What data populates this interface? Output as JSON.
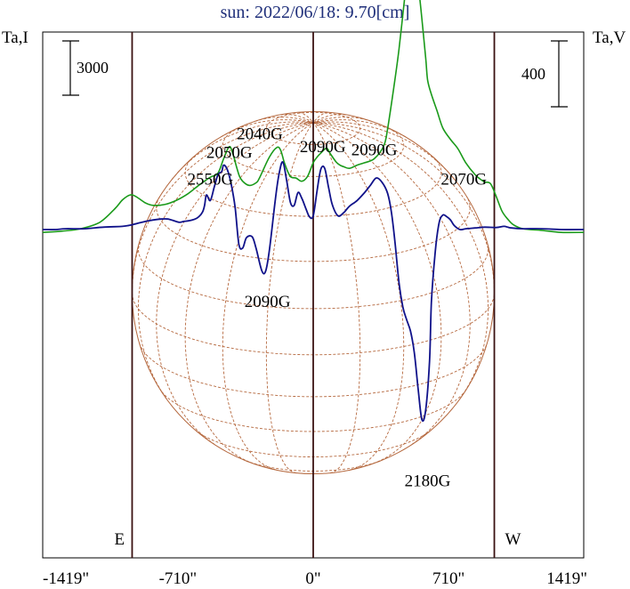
{
  "chart_data": {
    "type": "line",
    "title": "sun: 2022/06/18: 9.70[cm]",
    "ylabel_left": "Ta,I",
    "ylabel_right": "Ta,V",
    "x_ticks": [
      {
        "value": -1419,
        "label": "-1419\""
      },
      {
        "value": -710,
        "label": "-710\""
      },
      {
        "value": 0,
        "label": "0\""
      },
      {
        "value": 710,
        "label": "710\""
      },
      {
        "value": 1419,
        "label": "1419\""
      }
    ],
    "xlim": [
      -1419,
      1419
    ],
    "solar_limb": {
      "east": -950,
      "west": 950,
      "east_label": "E",
      "west_label": "W"
    },
    "scale_bars": [
      {
        "axis": "left",
        "label": "3000"
      },
      {
        "axis": "right",
        "label": "400"
      }
    ],
    "series": [
      {
        "name": "I",
        "color": "#1a9a1a",
        "x": [
          -1419,
          -1320,
          -1220,
          -1120,
          -1040,
          -1000,
          -960,
          -930,
          -880,
          -840,
          -780,
          -720,
          -660,
          -600,
          -540,
          -500,
          -470,
          -440,
          -420,
          -400,
          -380,
          -340,
          -300,
          -280,
          -230,
          -190,
          -170,
          -150,
          -120,
          -90,
          -60,
          -30,
          0,
          20,
          40,
          70,
          90,
          120,
          140,
          160,
          190,
          230,
          270,
          320,
          370,
          390,
          420,
          450,
          480,
          500,
          520,
          540,
          550,
          570,
          590,
          600,
          620,
          650,
          680,
          720,
          760,
          800,
          850,
          880,
          900,
          930,
          960,
          990,
          1020,
          1050,
          1100,
          1200,
          1300,
          1419
        ],
        "y": [
          -0.35,
          -0.2,
          0.1,
          0.9,
          2.6,
          3.7,
          4.3,
          4.1,
          3.3,
          3.0,
          3.1,
          3.6,
          4.4,
          5.5,
          6.5,
          7.0,
          8.8,
          10.3,
          9.3,
          7.6,
          6.3,
          5.5,
          5.8,
          6.5,
          9.0,
          10.2,
          9.8,
          8.2,
          6.6,
          6.4,
          6.0,
          6.6,
          8.3,
          9.0,
          9.5,
          10.1,
          9.4,
          8.4,
          8.0,
          7.8,
          7.6,
          8.0,
          8.3,
          8.8,
          10.4,
          12.5,
          17.2,
          22.4,
          28.8,
          32.8,
          34.5,
          33.6,
          30.8,
          26.2,
          21.3,
          18.6,
          16.8,
          14.7,
          12.6,
          11.2,
          10.0,
          8.3,
          6.8,
          6.2,
          5.9,
          5.7,
          4.1,
          2.3,
          1.3,
          0.6,
          0.1,
          -0.1,
          -0.35,
          -0.35
        ]
      },
      {
        "name": "V",
        "color": "#10128a",
        "x": [
          -1419,
          -1350,
          -1300,
          -1200,
          -1100,
          -1000,
          -950,
          -900,
          -860,
          -800,
          -760,
          -720,
          -700,
          -680,
          -650,
          -620,
          -600,
          -580,
          -570,
          -560,
          -540,
          -520,
          -500,
          -480,
          -470,
          -450,
          -430,
          -410,
          -390,
          -370,
          -350,
          -320,
          -300,
          -270,
          -250,
          -230,
          -200,
          -180,
          -160,
          -140,
          -120,
          -100,
          -80,
          -60,
          -40,
          -20,
          0,
          20,
          40,
          60,
          80,
          100,
          130,
          160,
          190,
          230,
          270,
          300,
          330,
          360,
          390,
          410,
          430,
          450,
          470,
          490,
          510,
          530,
          550,
          570,
          590,
          610,
          620,
          640,
          660,
          680,
          700,
          720,
          740,
          770,
          800,
          850,
          900,
          960,
          1000,
          1020,
          1040,
          1100,
          1200,
          1300,
          1419
        ],
        "y": [
          0,
          0,
          0.1,
          0.1,
          0.3,
          0.4,
          0.6,
          0.9,
          1.1,
          1.3,
          1.3,
          1.0,
          0.9,
          1.0,
          1.1,
          1.3,
          1.6,
          2.2,
          3.0,
          4.3,
          3.6,
          5.2,
          6.8,
          7.2,
          8.0,
          7.4,
          5.6,
          2.8,
          -1.8,
          -2.3,
          -1.0,
          -0.9,
          -2.3,
          -5.1,
          -5.2,
          -2.6,
          3.5,
          6.8,
          8.4,
          6.2,
          3.4,
          3.0,
          4.6,
          3.9,
          2.7,
          1.6,
          1.7,
          4.8,
          7.5,
          7.6,
          5.3,
          3.1,
          1.7,
          2.1,
          2.9,
          3.6,
          4.6,
          5.5,
          6.4,
          5.9,
          4.5,
          2.2,
          -1.8,
          -6.6,
          -9.6,
          -11.2,
          -12.6,
          -15.2,
          -19.7,
          -23.6,
          -22.4,
          -16.4,
          -9.0,
          -2.8,
          0.8,
          1.8,
          1.6,
          1.2,
          0.5,
          0,
          0.1,
          0.2,
          0.3,
          0.25,
          0.4,
          0.3,
          0.2,
          0.1,
          0.1,
          0,
          0
        ]
      }
    ],
    "annotations": [
      {
        "label": "2040G",
        "x": -280,
        "y": 11.2
      },
      {
        "label": "2090G",
        "x": 50,
        "y": 9.6
      },
      {
        "label": "2090G",
        "x": 320,
        "y": 9.2
      },
      {
        "label": "2050G",
        "x": -440,
        "y": 8.9
      },
      {
        "label": "2550G",
        "x": -540,
        "y": 5.6
      },
      {
        "label": "2070G",
        "x": 790,
        "y": 5.6
      },
      {
        "label": "2090G",
        "x": -240,
        "y": -9.6
      },
      {
        "label": "2180G",
        "x": 600,
        "y": -31.9
      }
    ]
  }
}
